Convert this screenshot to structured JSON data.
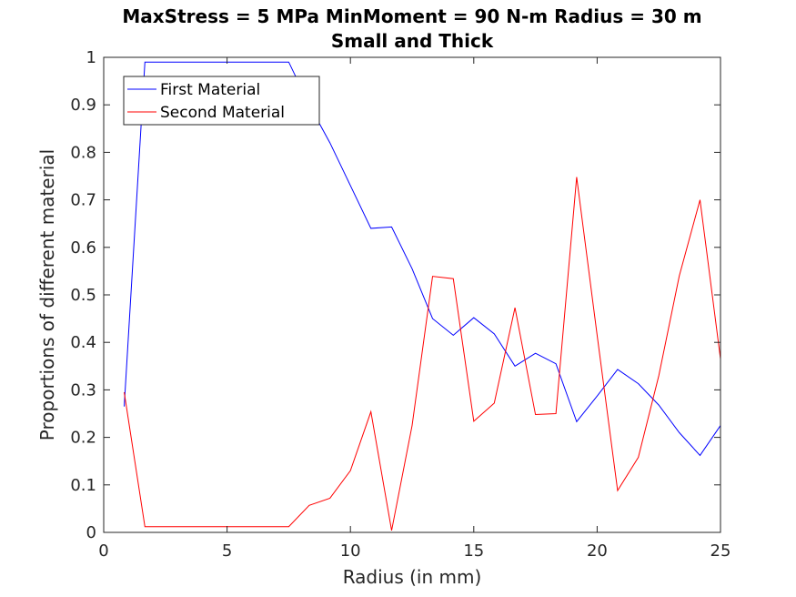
{
  "chart_data": {
    "type": "line",
    "title": [
      "MaxStress = 5 MPa MinMoment = 90 N-m Radius = 30 m",
      "Small and Thick"
    ],
    "xlabel": "Radius (in mm)",
    "ylabel": "Proportions of different material",
    "xlim": [
      0,
      25
    ],
    "ylim": [
      0,
      1
    ],
    "xticks": [
      "0",
      "5",
      "10",
      "15",
      "20",
      "25"
    ],
    "yticks": [
      "0",
      "0.1",
      "0.2",
      "0.3",
      "0.4",
      "0.5",
      "0.6",
      "0.7",
      "0.8",
      "0.9",
      "1"
    ],
    "grid": false,
    "legend_position": "top-left",
    "x": [
      0.83,
      1.67,
      2.5,
      3.33,
      4.17,
      5.0,
      5.83,
      6.67,
      7.5,
      8.33,
      9.17,
      10.0,
      10.83,
      11.67,
      12.5,
      13.33,
      14.17,
      15.0,
      15.83,
      16.67,
      17.5,
      18.33,
      19.17,
      20.0,
      20.83,
      21.67,
      22.5,
      23.33,
      24.17,
      25.0
    ],
    "series": [
      {
        "name": "First Material",
        "color": "#0000ff",
        "values": [
          0.265,
          0.99,
          0.99,
          0.99,
          0.99,
          0.99,
          0.99,
          0.99,
          0.99,
          0.9,
          0.82,
          0.73,
          0.64,
          0.643,
          0.555,
          0.45,
          0.415,
          0.452,
          0.418,
          0.35,
          0.377,
          0.355,
          0.233,
          0.287,
          0.343,
          0.313,
          0.268,
          0.21,
          0.162,
          0.225
        ]
      },
      {
        "name": "Second Material",
        "color": "#ff0000",
        "values": [
          0.295,
          0.012,
          0.012,
          0.012,
          0.012,
          0.012,
          0.012,
          0.012,
          0.012,
          0.057,
          0.072,
          0.13,
          0.254,
          0.004,
          0.225,
          0.539,
          0.534,
          0.234,
          0.272,
          0.473,
          0.248,
          0.25,
          0.748,
          0.415,
          0.088,
          0.158,
          0.33,
          0.54,
          0.7,
          0.365
        ]
      }
    ]
  }
}
